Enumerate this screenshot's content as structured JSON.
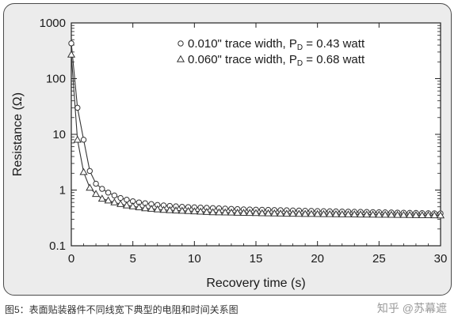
{
  "caption": "图5：表面贴装器件不同线宽下典型的电阻和时间关系图",
  "watermark": "知乎 @苏幕遮",
  "chart_data": {
    "type": "line",
    "xlabel": "Recovery time (s)",
    "ylabel": "Resistance (Ω)",
    "xlim": [
      0,
      30
    ],
    "ylim": [
      0.1,
      1000
    ],
    "yscale": "log",
    "grid": false,
    "legend_position": "top-right",
    "x_ticks": [
      0,
      5,
      10,
      15,
      20,
      25,
      30
    ],
    "x_tick_labels": [
      "0",
      "5",
      "10",
      "15",
      "20",
      "25",
      "30"
    ],
    "y_ticks": [
      0.1,
      1,
      10,
      100,
      1000
    ],
    "y_tick_labels": [
      "0.1",
      "1",
      "10",
      "100",
      "1000"
    ],
    "series": [
      {
        "name": "0.010\" trace width, P",
        "name_sub": "D",
        "name_suffix": " = 0.43 watt",
        "marker": "circle",
        "x": [
          0,
          0.5,
          1,
          1.5,
          2,
          2.5,
          3,
          3.5,
          4,
          4.5,
          5,
          5.5,
          6,
          6.5,
          7,
          7.5,
          8,
          8.5,
          9,
          9.5,
          10,
          10.5,
          11,
          11.5,
          12,
          12.5,
          13,
          13.5,
          14,
          14.5,
          15,
          15.5,
          16,
          16.5,
          17,
          17.5,
          18,
          18.5,
          19,
          19.5,
          20,
          20.5,
          21,
          21.5,
          22,
          22.5,
          23,
          23.5,
          24,
          24.5,
          25,
          25.5,
          26,
          26.5,
          27,
          27.5,
          28,
          28.5,
          29,
          29.5,
          30
        ],
        "y": [
          430,
          30,
          8,
          2.2,
          1.3,
          1.05,
          0.9,
          0.8,
          0.72,
          0.67,
          0.63,
          0.6,
          0.58,
          0.56,
          0.54,
          0.53,
          0.52,
          0.51,
          0.5,
          0.495,
          0.49,
          0.485,
          0.48,
          0.475,
          0.47,
          0.465,
          0.46,
          0.455,
          0.45,
          0.448,
          0.445,
          0.443,
          0.44,
          0.438,
          0.435,
          0.433,
          0.43,
          0.428,
          0.425,
          0.423,
          0.42,
          0.418,
          0.416,
          0.414,
          0.412,
          0.41,
          0.408,
          0.406,
          0.404,
          0.402,
          0.4,
          0.398,
          0.396,
          0.394,
          0.392,
          0.39,
          0.388,
          0.386,
          0.384,
          0.382,
          0.38
        ]
      },
      {
        "name": "0.060\" trace width, P",
        "name_sub": "D",
        "name_suffix": " = 0.68 watt",
        "marker": "triangle",
        "x": [
          0,
          0.5,
          1,
          1.5,
          2,
          2.5,
          3,
          3.5,
          4,
          4.5,
          5,
          5.5,
          6,
          6.5,
          7,
          7.5,
          8,
          8.5,
          9,
          9.5,
          10,
          10.5,
          11,
          11.5,
          12,
          12.5,
          13,
          13.5,
          14,
          14.5,
          15,
          15.5,
          16,
          16.5,
          17,
          17.5,
          18,
          18.5,
          19,
          19.5,
          20,
          20.5,
          21,
          21.5,
          22,
          22.5,
          23,
          23.5,
          24,
          24.5,
          25,
          25.5,
          26,
          26.5,
          27,
          27.5,
          28,
          28.5,
          29,
          29.5,
          30
        ],
        "y": [
          270,
          8,
          2.1,
          1.1,
          0.85,
          0.7,
          0.65,
          0.6,
          0.56,
          0.53,
          0.51,
          0.49,
          0.47,
          0.46,
          0.45,
          0.44,
          0.435,
          0.43,
          0.425,
          0.42,
          0.415,
          0.41,
          0.405,
          0.4,
          0.398,
          0.396,
          0.394,
          0.392,
          0.39,
          0.388,
          0.386,
          0.384,
          0.382,
          0.38,
          0.378,
          0.376,
          0.375,
          0.374,
          0.373,
          0.372,
          0.371,
          0.37,
          0.369,
          0.368,
          0.367,
          0.366,
          0.365,
          0.364,
          0.363,
          0.362,
          0.361,
          0.36,
          0.359,
          0.358,
          0.357,
          0.356,
          0.355,
          0.354,
          0.353,
          0.352,
          0.35
        ]
      }
    ]
  }
}
